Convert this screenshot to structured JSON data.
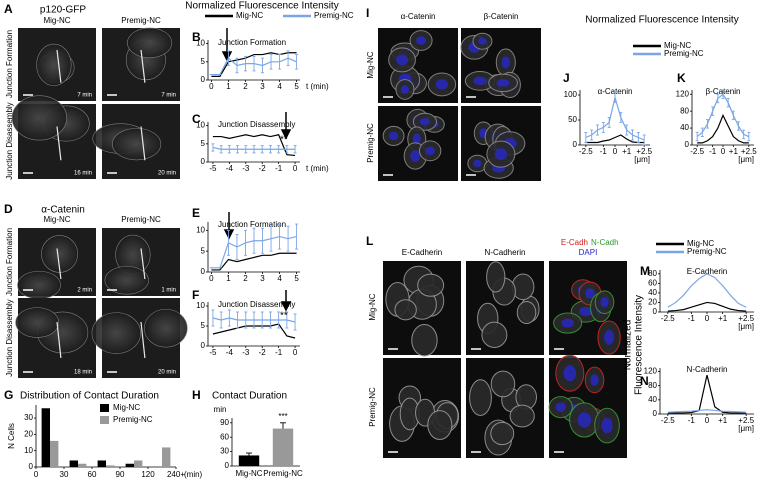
{
  "panels": {
    "A": {
      "letter": "A",
      "title": "p120-GFP",
      "columns": [
        "Mig-NC",
        "Premig-NC"
      ],
      "rows": [
        "Junction Formation",
        "Junction Disassembly"
      ],
      "timestamps": [
        "7 min",
        "7 min",
        "16 min",
        "20 min"
      ]
    },
    "D": {
      "letter": "D",
      "title": "α-Catenin",
      "columns": [
        "Mig-NC",
        "Premig-NC"
      ],
      "rows": [
        "Junction Formation",
        "Junction Disassembly"
      ],
      "timestamps": [
        "2 min",
        "1 min",
        "18 min",
        "20 min"
      ]
    },
    "I": {
      "letter": "I",
      "columns": [
        "α-Catenin",
        "β-Catenin"
      ],
      "rows": [
        "Mig-NC",
        "Premig-NC"
      ]
    },
    "L": {
      "letter": "L",
      "columns": [
        "E-Cadherin",
        "N-Cadherin"
      ],
      "merge_label": [
        "E-Cadh",
        "N-Cadh",
        "DAPI"
      ],
      "rows": [
        "Mig-NC",
        "Premig-NC"
      ]
    }
  },
  "groups": [
    {
      "title": "Normalized Fluorescence Intensity",
      "legend": [
        {
          "name": "Mig-NC",
          "color": "#000000"
        },
        {
          "name": "Premig-NC",
          "color": "#7aa6e6"
        }
      ]
    },
    {
      "title": "Normalized Fluorescence Intensity",
      "legend": [
        {
          "name": "Mig-NC",
          "color": "#000000"
        },
        {
          "name": "Premig-NC",
          "color": "#7aa6e6"
        }
      ]
    },
    {
      "ylabel": [
        "Normalized",
        "Fluorescence Intensity"
      ],
      "legend": [
        {
          "name": "Mig-NC",
          "color": "#000000"
        },
        {
          "name": "Premig-NC",
          "color": "#7aa6e6"
        }
      ]
    }
  ],
  "chart_data": [
    {
      "type": "line",
      "letter": "B",
      "title": "Junction Formation",
      "x": [
        0,
        0.5,
        1,
        1.5,
        2,
        2.5,
        3,
        3.5,
        4,
        4.5,
        5
      ],
      "series": [
        {
          "color": "#000000",
          "values": [
            1,
            1,
            5,
            5.5,
            6,
            7,
            7,
            7.5,
            7,
            7.5,
            7.5
          ]
        },
        {
          "color": "#7aa6e6",
          "values": [
            1.5,
            1.5,
            6,
            4,
            4.5,
            4.5,
            4,
            5,
            5,
            6,
            5
          ],
          "errors": [
            0,
            0,
            2,
            2,
            2,
            2,
            2,
            2,
            2,
            2,
            2
          ]
        }
      ],
      "xlim": [
        -0.2,
        5.2
      ],
      "xticks": [
        0,
        1,
        2,
        3,
        4,
        5
      ],
      "xlabel": "t (min)",
      "ylim": [
        0,
        11
      ],
      "yticks": [
        0,
        5,
        10
      ]
    },
    {
      "type": "line",
      "letter": "C",
      "title": "Junction Disassembly",
      "annotation": "**",
      "x": [
        -5,
        -4.5,
        -4,
        -3.5,
        -3,
        -2.5,
        -2,
        -1.5,
        -1,
        -0.5,
        0
      ],
      "series": [
        {
          "color": "#000000",
          "values": [
            7,
            7,
            6.5,
            7,
            7.5,
            7,
            7.5,
            7,
            7.5,
            2,
            1.8
          ]
        },
        {
          "color": "#7aa6e6",
          "values": [
            4,
            3.5,
            3.5,
            3.5,
            3.5,
            3.5,
            3.5,
            3.5,
            3.5,
            3.5,
            3.5
          ],
          "errors": [
            1,
            1,
            1,
            1,
            1,
            1,
            1,
            1,
            1,
            1,
            1
          ]
        }
      ],
      "xlim": [
        -5.3,
        0.3
      ],
      "xticks": [
        -5,
        -4,
        -3,
        -2,
        -1,
        0
      ],
      "xlabel": "t (min)",
      "ylim": [
        0,
        11
      ],
      "yticks": [
        0,
        5,
        10
      ]
    },
    {
      "type": "line",
      "letter": "E",
      "title": "Junction Formation",
      "x": [
        0,
        0.5,
        1,
        1.5,
        2,
        2.5,
        3,
        3.5,
        4,
        4.5,
        5
      ],
      "series": [
        {
          "color": "#000000",
          "values": [
            0.5,
            0.5,
            3,
            2.5,
            3,
            3.5,
            4,
            4,
            4.5,
            4.5,
            4.5
          ]
        },
        {
          "color": "#7aa6e6",
          "values": [
            1,
            1,
            7,
            6,
            7,
            7.5,
            7.5,
            8,
            8.5,
            8,
            8.5
          ],
          "errors": [
            0,
            0,
            3,
            3,
            3,
            3,
            3,
            3,
            3,
            3,
            3
          ]
        }
      ],
      "xlim": [
        -0.2,
        5.2
      ],
      "xticks": [
        0,
        1,
        2,
        3,
        4,
        5
      ],
      "ylim": [
        0,
        12
      ],
      "yticks": [
        0,
        5,
        10
      ]
    },
    {
      "type": "line",
      "letter": "F",
      "title": "Junction Disassembly",
      "annotation": "**",
      "x": [
        -5,
        -4.5,
        -4,
        -3.5,
        -3,
        -2.5,
        -2,
        -1.5,
        -1,
        -0.5,
        0
      ],
      "series": [
        {
          "color": "#000000",
          "values": [
            3,
            3.5,
            4,
            4.5,
            5,
            5,
            5,
            5,
            5.5,
            2.5,
            2
          ]
        },
        {
          "color": "#7aa6e6",
          "values": [
            7,
            6.5,
            7,
            6.5,
            6.5,
            6.5,
            6.5,
            6.5,
            6.5,
            6.5,
            6
          ],
          "errors": [
            2,
            2,
            2,
            2,
            2,
            2,
            2,
            2,
            2,
            2,
            2
          ]
        }
      ],
      "xlim": [
        -5.3,
        0.3
      ],
      "xticks": [
        -5,
        -4,
        -3,
        -2,
        -1,
        0
      ],
      "ylim": [
        0,
        11
      ],
      "yticks": [
        0,
        5,
        10
      ]
    },
    {
      "type": "histbar",
      "letter": "G",
      "title": "Distribution of Contact Duration",
      "ylabel": "N Cells",
      "xlabel": "(min)",
      "xticks": [
        0,
        30,
        60,
        90,
        120,
        {
          "value": 240,
          "label": "240+"
        }
      ],
      "series": [
        {
          "name": "Mig-NC",
          "color": "#000000",
          "values": [
            36,
            4,
            4,
            2,
            0
          ]
        },
        {
          "name": "Premig-NC",
          "color": "#999999",
          "values": [
            16,
            2,
            1,
            4,
            12
          ]
        }
      ],
      "ylim": [
        0,
        38
      ],
      "yticks": [
        0,
        10,
        20,
        30
      ]
    },
    {
      "type": "bar",
      "letter": "H",
      "title": "Contact Duration",
      "yunit": "min",
      "annotation": "***",
      "categories": [
        "Mig-NC",
        "Premig-NC"
      ],
      "values": [
        22,
        78
      ],
      "errors": [
        5,
        12
      ],
      "colors": [
        "#000000",
        "#999999"
      ],
      "ylim": [
        0,
        100
      ],
      "yticks": [
        0,
        30,
        60,
        90
      ]
    },
    {
      "type": "line",
      "letter": "J",
      "title": "α-Catenin",
      "xlabel": "[μm]",
      "x": [
        -2.5,
        -2,
        -1.5,
        -1,
        -0.5,
        0,
        0.5,
        1,
        1.5,
        2,
        2.5
      ],
      "series": [
        {
          "color": "#000000",
          "values": [
            5,
            5,
            5,
            8,
            10,
            15,
            20,
            12,
            6,
            5,
            5
          ]
        },
        {
          "color": "#7aa6e6",
          "values": [
            15,
            20,
            30,
            35,
            45,
            95,
            55,
            30,
            20,
            15,
            10
          ],
          "errors": [
            10,
            10,
            10,
            10,
            10,
            10,
            10,
            10,
            10,
            10,
            10
          ]
        }
      ],
      "xlim": [
        -3,
        3
      ],
      "xticks": [
        -2.5,
        -1,
        0,
        {
          "value": 1,
          "label": "+1"
        },
        {
          "value": 2.5,
          "label": "+2.5"
        }
      ],
      "ylim": [
        0,
        110
      ],
      "yticks": [
        0,
        50,
        100
      ]
    },
    {
      "type": "line",
      "letter": "K",
      "title": "β-Catenin",
      "xlabel": "[μm]",
      "x": [
        -2.5,
        -2,
        -1.5,
        -1,
        -0.5,
        0,
        0.5,
        1,
        1.5,
        2,
        2.5
      ],
      "series": [
        {
          "color": "#000000",
          "values": [
            5,
            5,
            10,
            20,
            40,
            70,
            45,
            20,
            10,
            5,
            5
          ]
        },
        {
          "color": "#7aa6e6",
          "values": [
            20,
            30,
            50,
            80,
            110,
            120,
            100,
            70,
            45,
            25,
            20
          ],
          "errors": [
            10,
            10,
            10,
            10,
            10,
            10,
            10,
            10,
            10,
            10,
            10
          ]
        }
      ],
      "xlim": [
        -3,
        3
      ],
      "xticks": [
        -2.5,
        -1,
        0,
        {
          "value": 1,
          "label": "+1"
        },
        {
          "value": 2.5,
          "label": "+2.5"
        }
      ],
      "ylim": [
        0,
        130
      ],
      "yticks": [
        0,
        40,
        80,
        120
      ]
    },
    {
      "type": "line",
      "letter": "M",
      "title": "E-Cadherin",
      "xlabel": "[μm]",
      "x": [
        -2.5,
        -2,
        -1.5,
        -1,
        -0.5,
        0,
        0.5,
        1,
        1.5,
        2,
        2.5
      ],
      "series": [
        {
          "color": "#000000",
          "values": [
            2,
            3,
            5,
            10,
            15,
            20,
            18,
            12,
            6,
            3,
            2
          ]
        },
        {
          "color": "#7aa6e6",
          "values": [
            10,
            20,
            35,
            55,
            70,
            80,
            72,
            55,
            35,
            18,
            10
          ]
        }
      ],
      "xlim": [
        -3,
        3
      ],
      "xticks": [
        -2.5,
        -1,
        0,
        {
          "value": 1,
          "label": "+1"
        },
        {
          "value": 2.5,
          "label": "+2.5"
        }
      ],
      "ylim": [
        0,
        88
      ],
      "yticks": [
        0,
        20,
        40,
        60,
        80
      ]
    },
    {
      "type": "line",
      "letter": "N",
      "title": "N-Cadherin",
      "xlabel": "[μm]",
      "x": [
        -2.5,
        -2,
        -1.5,
        -1,
        -0.5,
        0,
        0.5,
        1,
        1.5,
        2,
        2.5
      ],
      "series": [
        {
          "color": "#000000",
          "values": [
            3,
            3,
            3,
            4,
            10,
            110,
            20,
            5,
            3,
            3,
            3
          ]
        },
        {
          "color": "#7aa6e6",
          "values": [
            5,
            6,
            7,
            8,
            10,
            12,
            10,
            8,
            7,
            6,
            5
          ]
        }
      ],
      "xlim": [
        -3,
        3
      ],
      "xticks": [
        -2.5,
        -1,
        0,
        {
          "value": 1,
          "label": "+1"
        },
        {
          "value": 2.5,
          "label": "+2.5"
        }
      ],
      "ylim": [
        0,
        130
      ],
      "yticks": [
        0,
        40,
        80,
        120
      ]
    }
  ]
}
